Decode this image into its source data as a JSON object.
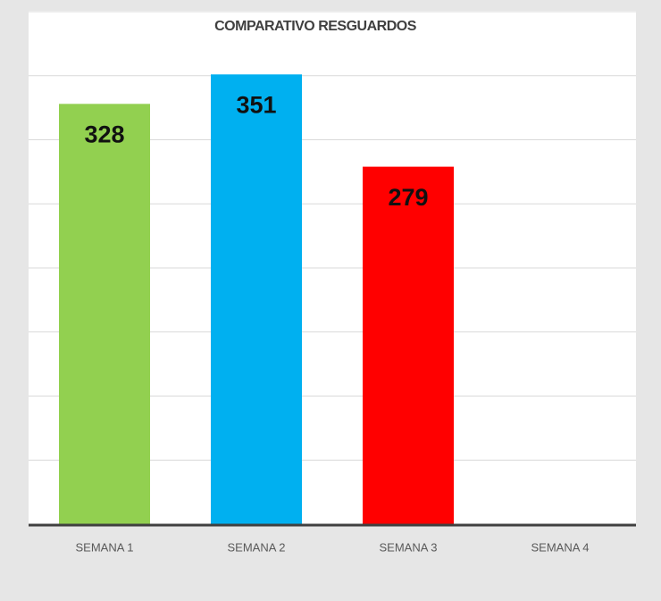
{
  "chart_data": {
    "type": "bar",
    "title": "COMPARATIVO RESGUARDOS",
    "categories": [
      "SEMANA 1",
      "SEMANA 2",
      "SEMANA 3",
      "SEMANA 4"
    ],
    "values": [
      328,
      351,
      279,
      null
    ],
    "colors": [
      "#92d050",
      "#00b0f0",
      "#ff0000",
      "#7f7f7f"
    ],
    "ylim": [
      0,
      400
    ],
    "yticks": [
      0,
      50,
      100,
      150,
      200,
      250,
      300,
      350,
      400
    ],
    "grid": true
  }
}
